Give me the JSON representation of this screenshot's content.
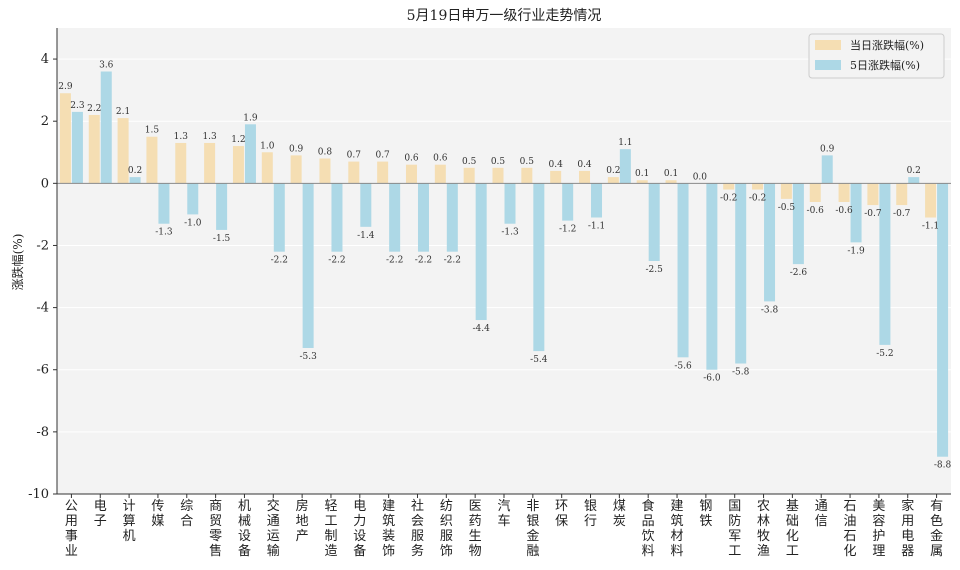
{
  "chart_data": {
    "type": "bar",
    "title": "5月19日申万一级行业走势情况",
    "ylabel": "涨跌幅(%)",
    "xlabel": "",
    "ylim": [
      -10,
      5
    ],
    "yticks": [
      4,
      2,
      0,
      -2,
      -4,
      -6,
      -8,
      -10
    ],
    "grid": true,
    "legend_position": "top-right",
    "categories": [
      "公用事业",
      "电子",
      "计算机",
      "传媒",
      "综合",
      "商贸零售",
      "机械设备",
      "交通运输",
      "房地产",
      "轻工制造",
      "电力设备",
      "建筑装饰",
      "社会服务",
      "纺织服饰",
      "医药生物",
      "汽车",
      "非银金融",
      "环保",
      "银行",
      "煤炭",
      "食品饮料",
      "建筑材料",
      "钢铁",
      "国防军工",
      "农林牧渔",
      "基础化工",
      "通信",
      "石油石化",
      "美容护理",
      "家用电器",
      "有色金属"
    ],
    "series": [
      {
        "name": "当日涨跌幅(%)",
        "color": "#f5deb3",
        "values": [
          2.9,
          2.2,
          2.1,
          1.5,
          1.3,
          1.3,
          1.2,
          1.0,
          0.9,
          0.8,
          0.7,
          0.7,
          0.6,
          0.6,
          0.5,
          0.5,
          0.5,
          0.4,
          0.4,
          0.2,
          0.1,
          0.1,
          0.0,
          -0.2,
          -0.2,
          -0.5,
          -0.6,
          -0.6,
          -0.7,
          -0.7,
          -1.1
        ]
      },
      {
        "name": "5日涨跌幅(%)",
        "color": "#add8e6",
        "values": [
          2.3,
          3.6,
          0.2,
          -1.3,
          -1.0,
          -1.5,
          1.9,
          -2.2,
          -5.3,
          -2.2,
          -1.4,
          -2.2,
          -2.2,
          -2.2,
          -4.4,
          -1.3,
          -5.4,
          -1.2,
          -1.1,
          1.1,
          -2.5,
          -5.6,
          -6.0,
          -5.8,
          -3.8,
          -2.6,
          0.9,
          -1.9,
          -5.2,
          0.2,
          -8.8
        ]
      }
    ]
  }
}
